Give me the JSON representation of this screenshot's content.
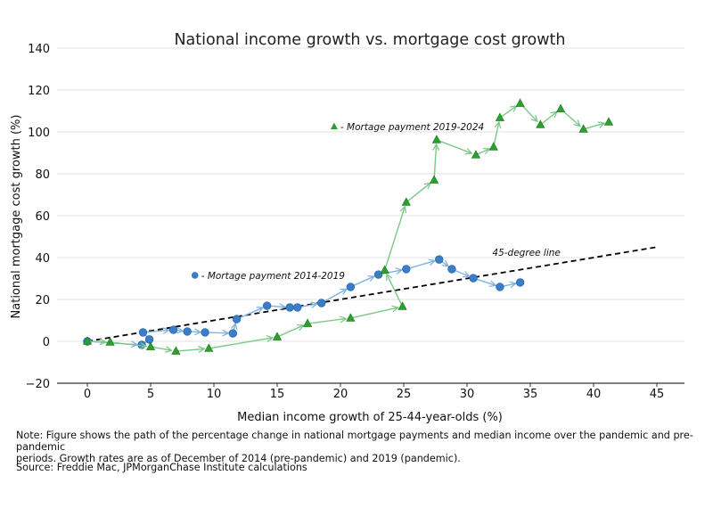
{
  "chart_data": {
    "type": "line",
    "title": "National income growth vs. mortgage cost growth",
    "xlabel": "Median income growth of 25-44-year-olds (%)",
    "ylabel": "National mortgage cost growth (%)",
    "xlim": [
      -2.5,
      47.5
    ],
    "ylim": [
      -20,
      140
    ],
    "xticks": [
      0,
      5,
      10,
      15,
      20,
      25,
      30,
      35,
      40,
      45
    ],
    "yticks": [
      -20,
      0,
      20,
      40,
      60,
      80,
      100,
      120,
      140
    ],
    "grid": "horizontal",
    "series": [
      {
        "name": "- Mortage payment 2014-2019",
        "marker": "circle",
        "color": "#3a7dc9",
        "line_color": "#7fb2e0",
        "points": [
          [
            0,
            0
          ],
          [
            4.3,
            -1.7
          ],
          [
            4.9,
            0.9
          ],
          [
            4.4,
            4.3
          ],
          [
            6.8,
            5.5
          ],
          [
            7.9,
            4.7
          ],
          [
            9.3,
            4.3
          ],
          [
            11.5,
            3.8
          ],
          [
            11.8,
            10.6
          ],
          [
            14.2,
            17.0
          ],
          [
            16.0,
            16.2
          ],
          [
            16.6,
            16.2
          ],
          [
            18.5,
            18.3
          ],
          [
            20.8,
            26.0
          ],
          [
            23.0,
            31.9
          ],
          [
            25.2,
            34.5
          ],
          [
            27.8,
            39.1
          ],
          [
            28.8,
            34.5
          ],
          [
            30.5,
            30.2
          ],
          [
            32.6,
            26.0
          ],
          [
            34.2,
            28.1
          ]
        ]
      },
      {
        "name": "- Mortage payment 2019-2024",
        "marker": "triangle",
        "color": "#2ca02c",
        "line_color": "#7cc886",
        "points": [
          [
            0,
            0
          ],
          [
            1.8,
            -0.4
          ],
          [
            5.0,
            -2.6
          ],
          [
            7.0,
            -4.7
          ],
          [
            9.6,
            -3.4
          ],
          [
            15.0,
            2.1
          ],
          [
            17.4,
            8.5
          ],
          [
            20.8,
            11.1
          ],
          [
            24.9,
            16.6
          ],
          [
            23.5,
            34.0
          ],
          [
            25.2,
            66.4
          ],
          [
            27.4,
            77.0
          ],
          [
            27.6,
            96.2
          ],
          [
            30.7,
            89.0
          ],
          [
            32.1,
            92.8
          ],
          [
            32.6,
            106.8
          ],
          [
            34.2,
            113.6
          ],
          [
            35.8,
            103.4
          ],
          [
            37.4,
            111.0
          ],
          [
            39.2,
            101.3
          ],
          [
            41.2,
            104.7
          ]
        ]
      }
    ],
    "reference_line": {
      "label": "45-degree line",
      "from": [
        0,
        0
      ],
      "to": [
        45,
        45
      ]
    },
    "annotations": [
      {
        "text": "- Mortage payment 2014-2019",
        "at": [
          8.5,
          31.5
        ],
        "marker": "circle"
      },
      {
        "text": "- Mortage payment 2019-2024",
        "at": [
          19.5,
          102.5
        ],
        "marker": "triangle"
      },
      {
        "text": "45-degree line",
        "at": [
          32,
          42.5
        ]
      }
    ]
  },
  "notes": {
    "note_line1": "Note: Figure shows the path of the percentage change in national mortgage payments and median income over the pandemic and pre-pandemic",
    "note_line2": "periods. Growth rates are as of December of 2014 (pre-pandemic) and 2019 (pandemic).",
    "source": "Source: Freddie Mac, JPMorganChase Institute calculations"
  }
}
